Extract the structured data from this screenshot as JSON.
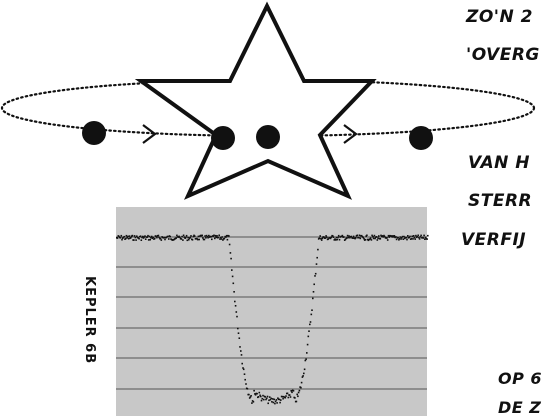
{
  "colors": {
    "ink": "#111111",
    "panel": "#c8c8c8",
    "grid": "#555555",
    "background": "#ffffff"
  },
  "text": {
    "line1": "ZO'N 2",
    "line2": "'OVERG",
    "line3": "VAN H",
    "line4": "STERR",
    "line5": "VERFIJ",
    "line6": "OP 6",
    "line7": "DE Z",
    "side_label": "KEPLER 6B"
  },
  "icons": {
    "star": "star-outline-icon",
    "planet": "filled-circle-icon",
    "arrow": "chevron-right-icon"
  },
  "chart_data": {
    "type": "line",
    "title": "",
    "xlabel": "",
    "ylabel": "",
    "grid": true,
    "series": [
      {
        "shape": "transit-light-curve",
        "flux_out_of_transit": 1.0,
        "flux_in_transit": 0.0,
        "ingress_start": 0.36,
        "ingress_end": 0.44,
        "egress_start": 0.57,
        "egress_end": 0.65
      }
    ]
  }
}
